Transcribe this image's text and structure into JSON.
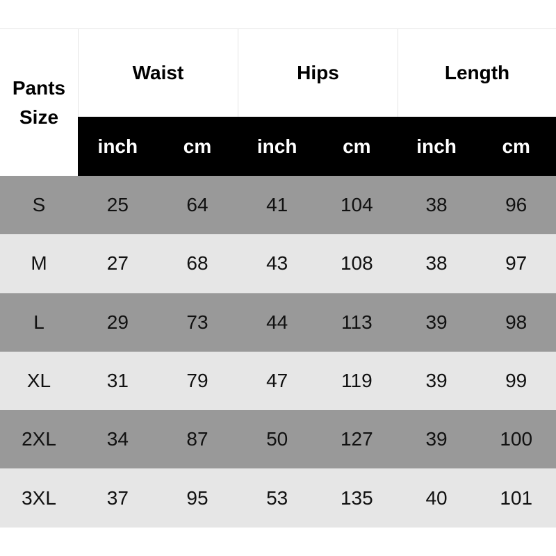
{
  "table": {
    "size_header": "Pants Size",
    "groups": [
      "Waist",
      "Hips",
      "Length"
    ],
    "units": [
      "inch",
      "cm",
      "inch",
      "cm",
      "inch",
      "cm"
    ],
    "rows": [
      {
        "size": "S",
        "values": [
          "25",
          "64",
          "41",
          "104",
          "38",
          "96"
        ]
      },
      {
        "size": "M",
        "values": [
          "27",
          "68",
          "43",
          "108",
          "38",
          "97"
        ]
      },
      {
        "size": "L",
        "values": [
          "29",
          "73",
          "44",
          "113",
          "39",
          "98"
        ]
      },
      {
        "size": "XL",
        "values": [
          "31",
          "79",
          "47",
          "119",
          "39",
          "99"
        ]
      },
      {
        "size": "2XL",
        "values": [
          "34",
          "87",
          "50",
          "127",
          "39",
          "100"
        ]
      },
      {
        "size": "3XL",
        "values": [
          "37",
          "95",
          "53",
          "135",
          "40",
          "101"
        ]
      }
    ],
    "colors": {
      "dark_row": "#999999",
      "light_row": "#e6e6e6",
      "unit_header_bg": "#000000"
    }
  }
}
